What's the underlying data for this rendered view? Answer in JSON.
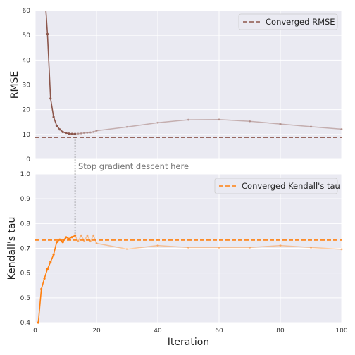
{
  "colors": {
    "rmse": "#8c564b",
    "tau": "#ff7f0e",
    "background": "#eaeaf2",
    "grid": "#ffffff"
  },
  "chart_data": [
    {
      "type": "line",
      "panel": "top",
      "ylabel": "RMSE",
      "xlabel": "",
      "xlim": [
        0,
        100
      ],
      "ylim": [
        0,
        60
      ],
      "yticks": [
        0,
        10,
        20,
        30,
        40,
        50,
        60
      ],
      "grid": true,
      "legend": {
        "position": "top-right",
        "entries": [
          "Converged RMSE"
        ]
      },
      "converged_value": 8.8,
      "stop_iteration": 13,
      "series": [
        {
          "style": "solid",
          "x": [
            4,
            5,
            6,
            7,
            8,
            9,
            10,
            11,
            12,
            13
          ],
          "y": [
            50.5,
            24.5,
            17.0,
            13.5,
            12.0,
            11.0,
            10.6,
            10.3,
            10.2,
            10.2
          ]
        },
        {
          "style": "faded",
          "x": [
            13,
            14,
            15,
            16,
            17,
            18,
            19,
            20,
            30,
            40,
            50,
            60,
            70,
            80,
            90,
            100
          ],
          "y": [
            10.2,
            10.3,
            10.4,
            10.6,
            10.7,
            10.8,
            11.0,
            11.5,
            13.0,
            14.7,
            15.9,
            16.0,
            15.3,
            14.2,
            13.1,
            12.1
          ]
        }
      ]
    },
    {
      "type": "line",
      "panel": "bottom",
      "ylabel": "Kendall's tau",
      "xlabel": "Iteration",
      "xlim": [
        0,
        100
      ],
      "ylim": [
        0.4,
        1.0
      ],
      "yticks": [
        0.4,
        0.5,
        0.6,
        0.7,
        0.8,
        0.9,
        1.0
      ],
      "xticks": [
        0,
        20,
        40,
        60,
        80,
        100
      ],
      "grid": true,
      "legend": {
        "position": "top-right",
        "entries": [
          "Converged Kendall's tau"
        ]
      },
      "converged_value": 0.733,
      "stop_iteration": 13,
      "series": [
        {
          "style": "solid",
          "x": [
            1,
            2,
            3,
            4,
            5,
            6,
            7,
            8,
            9,
            10,
            11,
            12,
            13
          ],
          "y": [
            0.4,
            0.535,
            0.578,
            0.616,
            0.645,
            0.675,
            0.725,
            0.735,
            0.725,
            0.745,
            0.738,
            0.745,
            0.752
          ]
        },
        {
          "style": "faded",
          "x": [
            13,
            14,
            15,
            16,
            17,
            18,
            19,
            20,
            30,
            40,
            50,
            60,
            70,
            80,
            90,
            100
          ],
          "y": [
            0.752,
            0.728,
            0.752,
            0.73,
            0.752,
            0.728,
            0.752,
            0.72,
            0.697,
            0.711,
            0.703,
            0.703,
            0.703,
            0.711,
            0.703,
            0.696
          ]
        }
      ]
    }
  ],
  "legend_top_label": "Converged RMSE",
  "legend_bottom_label": "Converged Kendall's tau",
  "annotation": "Stop gradient descent here",
  "ylabel_top": "RMSE",
  "ylabel_bottom": "Kendall's tau",
  "xlabel": "Iteration"
}
